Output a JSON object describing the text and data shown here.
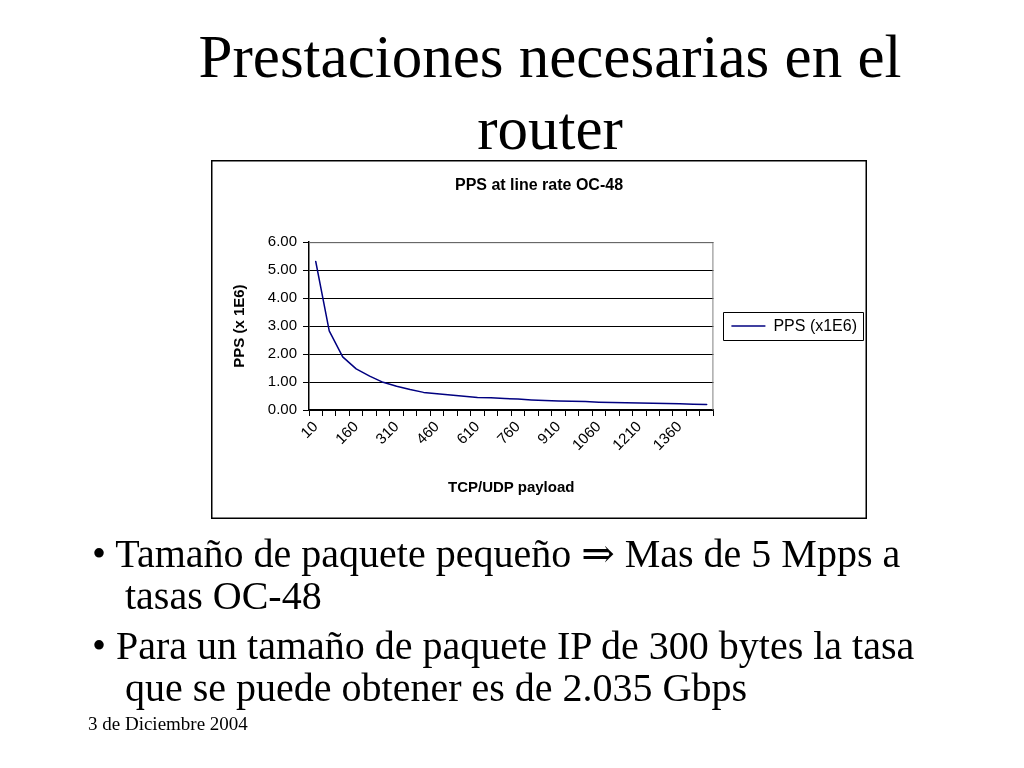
{
  "chart_data": {
    "type": "line",
    "title": "Prestaciones necesarias en el router",
    "subtitle": "PPS at line rate OC-48",
    "xlabel": "TCP/UDP payload",
    "ylabel": "PPS (x 1E6)",
    "categories": [
      "10",
      null,
      null,
      "160",
      null,
      null,
      "310",
      null,
      null,
      "460",
      null,
      null,
      "610",
      null,
      null,
      "760",
      null,
      null,
      "910",
      null,
      null,
      "1060",
      null,
      null,
      "1210",
      null,
      null,
      "1360",
      null,
      null
    ],
    "series": [
      {
        "name": "PPS (x1E6)",
        "color": "#000080",
        "values": [
          5.31,
          2.83,
          1.9,
          1.47,
          1.21,
          0.99,
          0.85,
          0.73,
          0.63,
          0.58,
          0.54,
          0.49,
          0.45,
          0.44,
          0.41,
          0.39,
          0.36,
          0.34,
          0.32,
          0.31,
          0.3,
          0.28,
          0.27,
          0.26,
          0.25,
          0.24,
          0.23,
          0.22,
          0.21,
          0.2
        ]
      }
    ],
    "ylim": [
      0,
      6
    ],
    "yticks": [
      {
        "value": 0,
        "label": "0.00"
      },
      {
        "value": 1,
        "label": "1.00"
      },
      {
        "value": 2,
        "label": "2.00"
      },
      {
        "value": 3,
        "label": "3.00"
      },
      {
        "value": 4,
        "label": "4.00"
      },
      {
        "value": 5,
        "label": "5.00"
      },
      {
        "value": 6,
        "label": "6.00"
      }
    ],
    "grid": "y",
    "legend": "right",
    "marker": "none",
    "line_style": "solid",
    "annotations": [
      "• Tamaño de paquete pequeño ⇒ Mas de 5 Mpps a tasas OC-48",
      "• Para un tamaño de paquete IP de 300 bytes la tasa que se puede obtener es de 2.035 Gbps",
      "3 de Diciembre 2004"
    ]
  }
}
